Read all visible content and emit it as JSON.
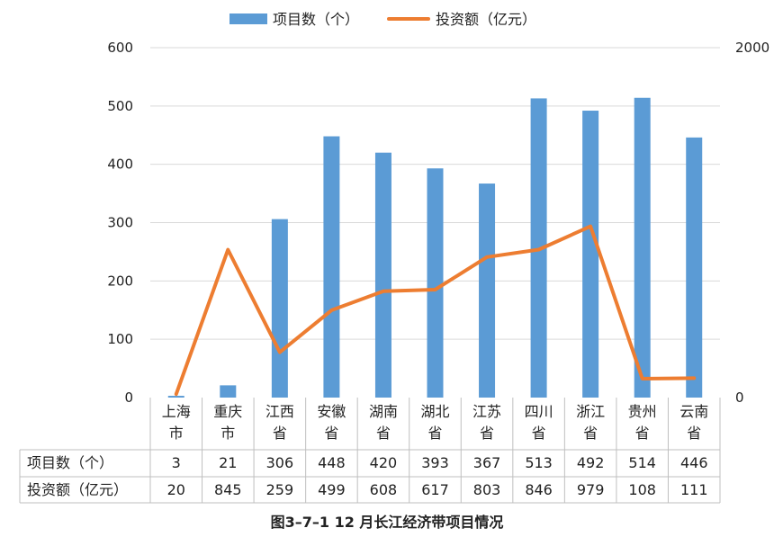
{
  "chart_data": {
    "type": "bar",
    "title": "",
    "caption": "图3–7–1  12 月长江经济带项目情况",
    "categories": [
      [
        "上海",
        "市"
      ],
      [
        "重庆",
        "市"
      ],
      [
        "江西",
        "省"
      ],
      [
        "安徽",
        "省"
      ],
      [
        "湖南",
        "省"
      ],
      [
        "湖北",
        "省"
      ],
      [
        "江苏",
        "省"
      ],
      [
        "四川",
        "省"
      ],
      [
        "浙江",
        "省"
      ],
      [
        "贵州",
        "省"
      ],
      [
        "云南",
        "省"
      ]
    ],
    "series": [
      {
        "name": "项目数（个）",
        "type": "bar",
        "axis": "left",
        "color": "#5b9bd5",
        "values": [
          3,
          21,
          306,
          448,
          420,
          393,
          367,
          513,
          492,
          514,
          446
        ]
      },
      {
        "name": "投资额（亿元）",
        "type": "line",
        "axis": "right",
        "color": "#ed7d31",
        "values": [
          20,
          845,
          259,
          499,
          608,
          617,
          803,
          846,
          979,
          108,
          111
        ]
      }
    ],
    "y_left": {
      "min": 0,
      "max": 600,
      "ticks": [
        "0",
        "100",
        "200",
        "300",
        "400",
        "500",
        "600"
      ]
    },
    "y_right": {
      "min": 0,
      "max": 2000,
      "ticks": [
        "0",
        "2000"
      ]
    },
    "grid": true,
    "legend_position": "top",
    "data_table": true
  }
}
